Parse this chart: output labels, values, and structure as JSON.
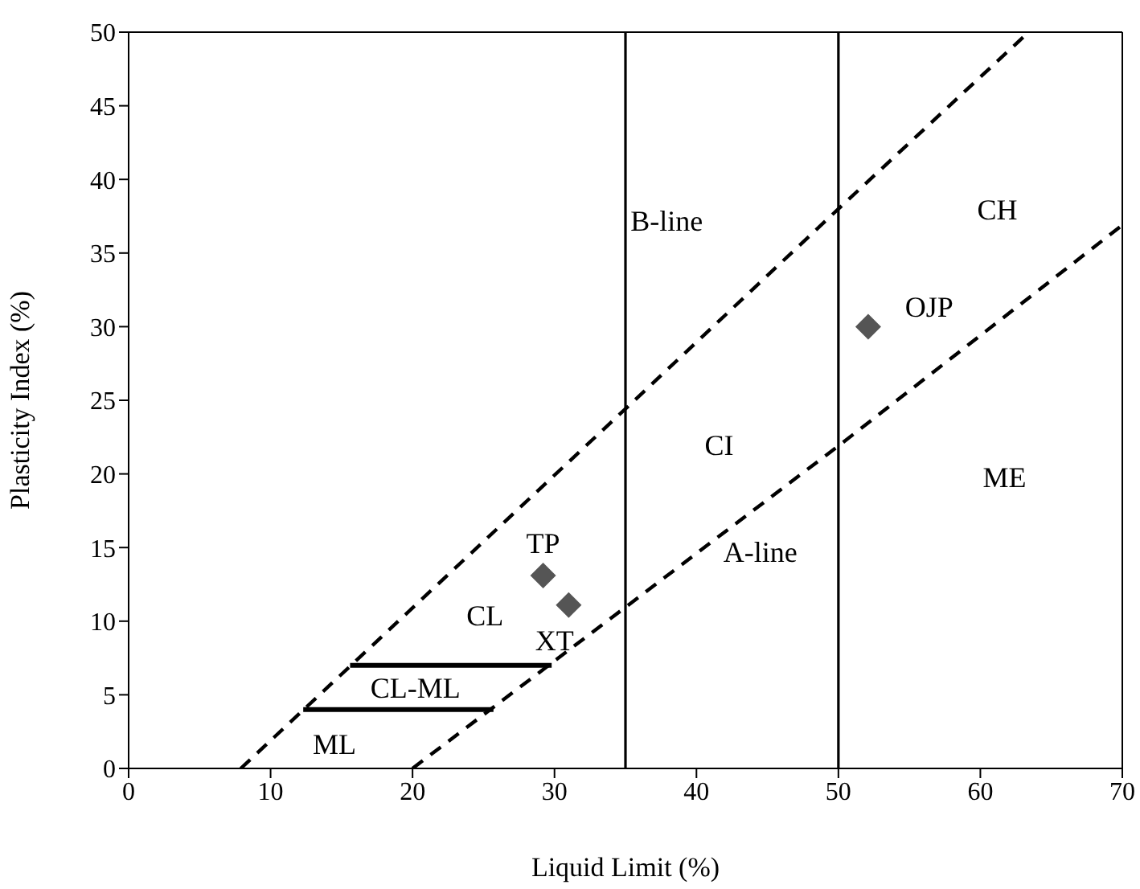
{
  "chart_data": {
    "type": "line",
    "xlabel": "Liquid Limit (%)",
    "ylabel": "Plasticity Index (%)",
    "xlim": [
      0,
      70
    ],
    "ylim": [
      0,
      50
    ],
    "xticks": [
      0,
      10,
      20,
      30,
      40,
      50,
      60,
      70
    ],
    "yticks": [
      0,
      5,
      10,
      15,
      20,
      25,
      30,
      35,
      40,
      45,
      50
    ],
    "grid": false,
    "series": [
      {
        "color": "#000000",
        "line_style": "dashed",
        "marker": "none",
        "x": [
          7.9,
          35.2,
          50,
          63.4
        ],
        "values": [
          0,
          24.6,
          38,
          50
        ]
      },
      {
        "color": "#000000",
        "line_style": "dashed",
        "marker": "none",
        "x": [
          20,
          50,
          70
        ],
        "values": [
          0,
          21.9,
          36.9
        ]
      },
      {
        "color": "#000000",
        "line_style": "solid",
        "marker": "none",
        "x": [
          15.6,
          29.8
        ],
        "values": [
          7,
          7
        ]
      },
      {
        "color": "#000000",
        "line_style": "solid",
        "marker": "none",
        "x": [
          12.3,
          25.7
        ],
        "values": [
          4,
          4
        ]
      },
      {
        "type": "scatter",
        "color": "#555555",
        "marker": "diamond",
        "x": [
          29.2,
          31,
          52.1
        ],
        "values": [
          13.1,
          11.1,
          30
        ]
      }
    ],
    "ref_lines": [
      {
        "axis": "x",
        "value": 35,
        "color": "#000000",
        "line_style": "solid"
      },
      {
        "axis": "x",
        "value": 50,
        "color": "#000000",
        "line_style": "solid"
      }
    ],
    "annotations": [
      "B-line",
      "CH",
      "OJP",
      "CI",
      "ME",
      "A-line",
      "TP",
      "CL",
      "XT",
      "CL-ML",
      "ML"
    ]
  }
}
